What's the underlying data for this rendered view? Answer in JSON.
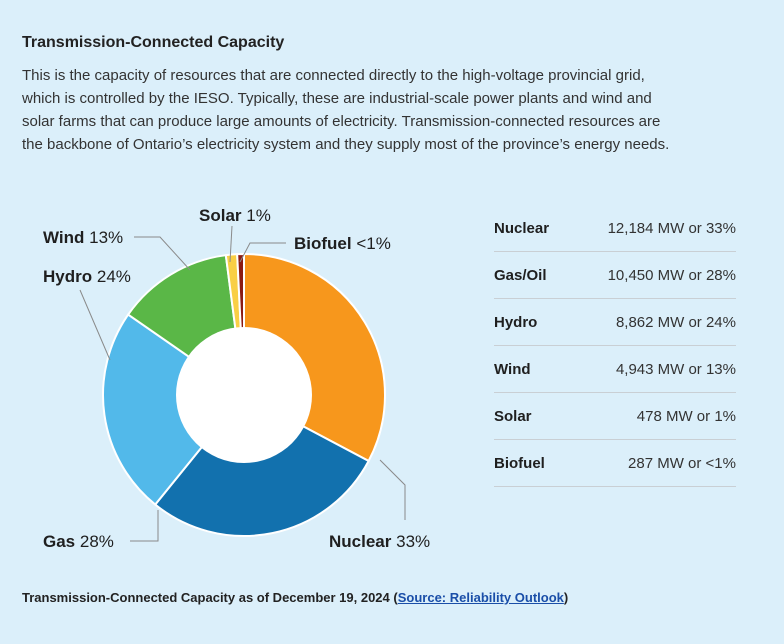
{
  "header": {
    "title": "Transmission-Connected Capacity",
    "description_lines": [
      "This is the capacity of resources that are connected directly to the high-voltage provincial grid,",
      "which is controlled by the IESO. Typically, these are industrial-scale power plants and wind and",
      "solar farms that can produce large amounts of electricity. Transmission-connected resources are",
      "the backbone of Ontario’s electricity system and they supply most of the province’s energy needs."
    ]
  },
  "chart_data": {
    "type": "pie",
    "donut": true,
    "slices": [
      {
        "name": "Nuclear",
        "value": 33,
        "mw": 12184,
        "label_text": "33%",
        "color": "#f7971c"
      },
      {
        "name": "Gas",
        "value": 28,
        "mw": 10450,
        "label_text": "28%",
        "color": "#1271ae"
      },
      {
        "name": "Hydro",
        "value": 24,
        "mw": 8862,
        "label_text": "24%",
        "color": "#52b9ea"
      },
      {
        "name": "Wind",
        "value": 13,
        "mw": 4943,
        "label_text": "13%",
        "color": "#5ab747"
      },
      {
        "name": "Solar",
        "value": 1,
        "mw": 478,
        "label_text": "1%",
        "color": "#f9cf45"
      },
      {
        "name": "Biofuel",
        "value": 1,
        "mw": 287,
        "label_text": "<1%",
        "color": "#8b1a12"
      }
    ]
  },
  "legend_table": [
    {
      "name": "Nuclear",
      "value": "12,184 MW or 33%"
    },
    {
      "name": "Gas/Oil",
      "value": "10,450 MW or 28%"
    },
    {
      "name": "Hydro",
      "value": "8,862 MW or 24%"
    },
    {
      "name": "Wind",
      "value": "4,943 MW or 13%"
    },
    {
      "name": "Solar",
      "value": "478 MW or 1%"
    },
    {
      "name": "Biofuel",
      "value": "287 MW or <1%"
    }
  ],
  "footer": {
    "caption": "Transmission-Connected Capacity as of December 19, 2024",
    "open_paren": "(",
    "link_text": "Source: Reliability Outlook",
    "close_paren": ")"
  }
}
